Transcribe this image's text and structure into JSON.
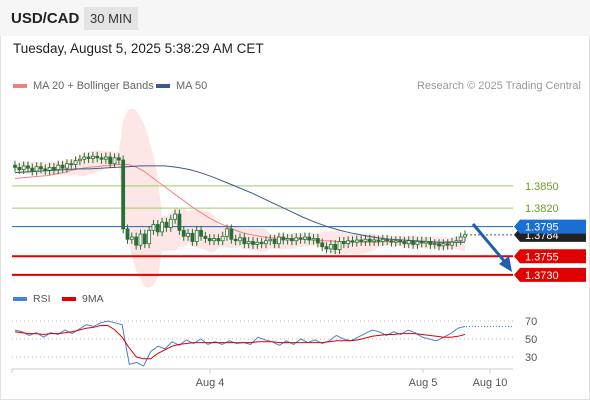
{
  "header": {
    "symbol": "USD/CAD",
    "timeframe": "30 MIN",
    "timestamp": "Tuesday, August 5, 2025 5:38:29 AM CET"
  },
  "legend": {
    "ma20": "MA 20 + Bollinger Bands",
    "ma50": "MA 50",
    "copyright": "Research © 2025 Trading Central"
  },
  "rsi_legend": {
    "rsi": "RSI",
    "ma9": "9MA"
  },
  "colors": {
    "ma20": "#f08080",
    "ma50": "#3d5a8a",
    "bollinger_fill": "#fde2e2",
    "candle": "#2b6e33",
    "resistance": "#9ccc65",
    "resistance_text": "#6a9e1f",
    "pivot": "#1565c0",
    "support": "#e00000",
    "rsi": "#4a7fd6",
    "rsi_ma": "#e00000",
    "arrow": "#1f5fae"
  },
  "chart_data": {
    "type": "candlestick",
    "title": "USD/CAD 30 MIN",
    "y_range": [
      1.3723,
      1.3912
    ],
    "x_ticks": [
      "Aug 4",
      "Aug 5",
      "Aug 10"
    ],
    "levels": {
      "resistances": [
        1.385,
        1.382
      ],
      "pivot": 1.3795,
      "supports": [
        1.3755,
        1.373
      ],
      "last_price": 1.3784
    },
    "level_labels": {
      "r2": "1.3850",
      "r1": "1.3820",
      "pivot": "1.3795",
      "last": "1.3784",
      "s1": "1.3755",
      "s2": "1.3730"
    },
    "closes": [
      1.3875,
      1.3872,
      1.3877,
      1.3874,
      1.387,
      1.3876,
      1.3873,
      1.3871,
      1.3875,
      1.3872,
      1.3878,
      1.3874,
      1.388,
      1.3879,
      1.3884,
      1.3886,
      1.3889,
      1.3887,
      1.389,
      1.3888,
      1.3886,
      1.3889,
      1.388,
      1.3888,
      1.3885,
      1.3792,
      1.3778,
      1.3781,
      1.377,
      1.3785,
      1.3772,
      1.379,
      1.3798,
      1.3788,
      1.3801,
      1.3794,
      1.3805,
      1.3812,
      1.379,
      1.3782,
      1.3786,
      1.3775,
      1.379,
      1.3782,
      1.3779,
      1.3776,
      1.3779,
      1.3776,
      1.3782,
      1.3792,
      1.3778,
      1.3776,
      1.378,
      1.3772,
      1.3775,
      1.3771,
      1.3774,
      1.3772,
      1.3776,
      1.3778,
      1.3772,
      1.3781,
      1.3777,
      1.3779,
      1.3776,
      1.378,
      1.3778,
      1.3781,
      1.3777,
      1.3779,
      1.3773,
      1.3768,
      1.3765,
      1.3771,
      1.3764,
      1.3775,
      1.3772,
      1.3776,
      1.3774,
      1.3777,
      1.3775,
      1.3778,
      1.3775,
      1.3777,
      1.3775,
      1.3778,
      1.3776,
      1.3774,
      1.3776,
      1.3775,
      1.3772,
      1.3776,
      1.3771,
      1.3775,
      1.3773,
      1.3775,
      1.3771,
      1.3772,
      1.3769,
      1.3772,
      1.377,
      1.3774,
      1.3776,
      1.3781,
      1.3784
    ],
    "ma20": [
      1.386,
      1.3861,
      1.3862,
      1.3863,
      1.3864,
      1.3866,
      1.3868,
      1.3871,
      1.3873,
      1.3875,
      1.3876,
      1.3877,
      1.3878,
      1.3879,
      1.3879,
      1.3876,
      1.387,
      1.3862,
      1.3854,
      1.3846,
      1.3838,
      1.383,
      1.3822,
      1.3815,
      1.3808,
      1.3802,
      1.3797,
      1.3792,
      1.3788,
      1.3785,
      1.3783,
      1.3781,
      1.378,
      1.3779,
      1.3779,
      1.3778,
      1.3778,
      1.3777,
      1.3776,
      1.3776,
      1.3775,
      1.3775,
      1.3775,
      1.3774,
      1.3774,
      1.3774,
      1.3775,
      1.3775,
      1.3774,
      1.3774,
      1.3773,
      1.3773,
      1.3773,
      1.3774,
      1.3775,
      1.3774,
      1.3774
    ],
    "ma50": [
      1.3868,
      1.3869,
      1.387,
      1.3871,
      1.3872,
      1.3873,
      1.3873,
      1.3874,
      1.3875,
      1.3876,
      1.3877,
      1.3877,
      1.3877,
      1.3875,
      1.3872,
      1.3867,
      1.3861,
      1.3854,
      1.3847,
      1.384,
      1.3832,
      1.3824,
      1.3816,
      1.3808,
      1.3801,
      1.3795,
      1.379,
      1.3786,
      1.3783,
      1.378,
      1.3778,
      1.3777,
      1.3776,
      1.3775,
      1.3774,
      1.3774,
      1.3774
    ],
    "rsi": {
      "levels": [
        70,
        50,
        30
      ],
      "level_labels": [
        "70",
        "50",
        "30"
      ],
      "rsi_values": [
        60,
        58,
        54,
        57,
        52,
        57,
        55,
        60,
        56,
        61,
        66,
        64,
        68,
        70,
        68,
        66,
        22,
        24,
        20,
        36,
        42,
        39,
        47,
        43,
        49,
        45,
        50,
        44,
        47,
        44,
        48,
        45,
        46,
        44,
        52,
        49,
        47,
        43,
        48,
        44,
        50,
        46,
        49,
        45,
        48,
        54,
        50,
        48,
        52,
        56,
        60,
        58,
        54,
        58,
        55,
        60,
        57,
        52,
        50,
        48,
        52,
        56,
        62,
        64
      ],
      "ma9_values": [
        58,
        57,
        56,
        56,
        55,
        56,
        56,
        57,
        58,
        60,
        62,
        63,
        65,
        65,
        60,
        52,
        40,
        30,
        28,
        28,
        34,
        38,
        42,
        44,
        45,
        46,
        46,
        46,
        46,
        46,
        46,
        46,
        46,
        46,
        47,
        47,
        47,
        46,
        46,
        46,
        46,
        46,
        46,
        46,
        47,
        48,
        48,
        48,
        49,
        51,
        53,
        54,
        55,
        55,
        56,
        56,
        56,
        55,
        54,
        53,
        52,
        52,
        53,
        55
      ]
    }
  }
}
